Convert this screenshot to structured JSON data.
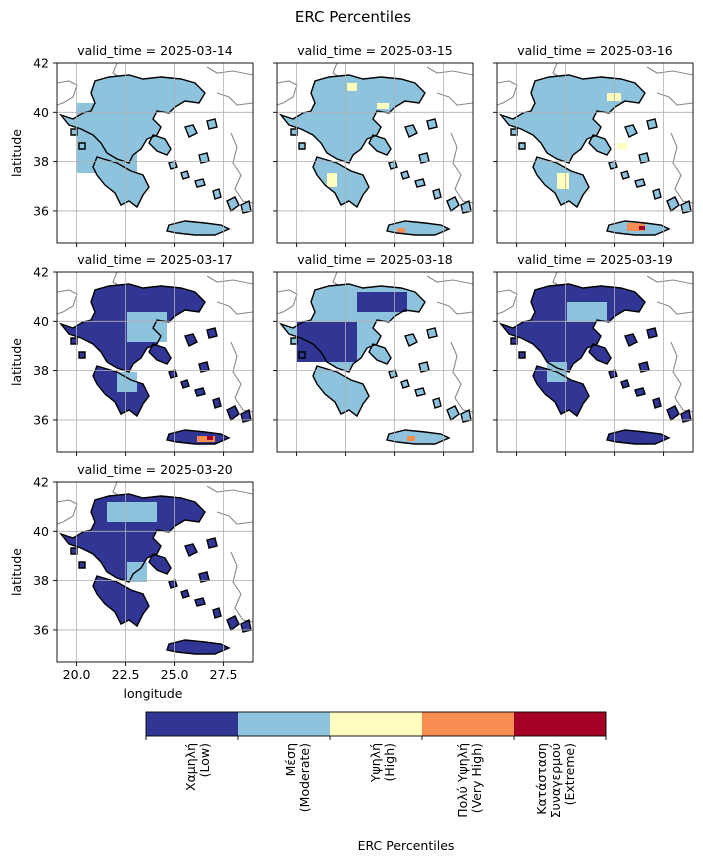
{
  "chart_data": {
    "type": "heatmap",
    "title": "ERC Percentiles",
    "xlabel": "longitude",
    "ylabel": "latitude",
    "xlim": [
      19.0,
      29.0
    ],
    "ylim": [
      34.7,
      42.0
    ],
    "xticks": [
      20.0,
      22.5,
      25.0,
      27.5
    ],
    "xtick_labels": [
      "20.0",
      "22.5",
      "25.0",
      "27.5"
    ],
    "yticks": [
      36,
      38,
      40,
      42
    ],
    "ytick_labels": [
      "36",
      "38",
      "40",
      "42"
    ],
    "grid": true,
    "panels": [
      {
        "title": "valid_time = 2025-03-14",
        "dominant_level": 1
      },
      {
        "title": "valid_time = 2025-03-15",
        "dominant_level": 1
      },
      {
        "title": "valid_time = 2025-03-16",
        "dominant_level": 1
      },
      {
        "title": "valid_time = 2025-03-17",
        "dominant_level": 0
      },
      {
        "title": "valid_time = 2025-03-18",
        "dominant_level": 1
      },
      {
        "title": "valid_time = 2025-03-19",
        "dominant_level": 0
      },
      {
        "title": "valid_time = 2025-03-20",
        "dominant_level": 0
      }
    ],
    "colorbar": {
      "label": "ERC Percentiles",
      "levels": [
        {
          "name": "Χαμηλή\n(Low)",
          "color": "#313695"
        },
        {
          "name": "Μέση\n(Moderate)",
          "color": "#8ec3de"
        },
        {
          "name": "Υψηλή\n(High)",
          "color": "#fffebe"
        },
        {
          "name": "Πολύ Υψηλή\n(Very High)",
          "color": "#f88d52"
        },
        {
          "name": "Κατάσταση\nΣυναγερμού\n(Extreme)",
          "color": "#a50026"
        }
      ]
    }
  }
}
